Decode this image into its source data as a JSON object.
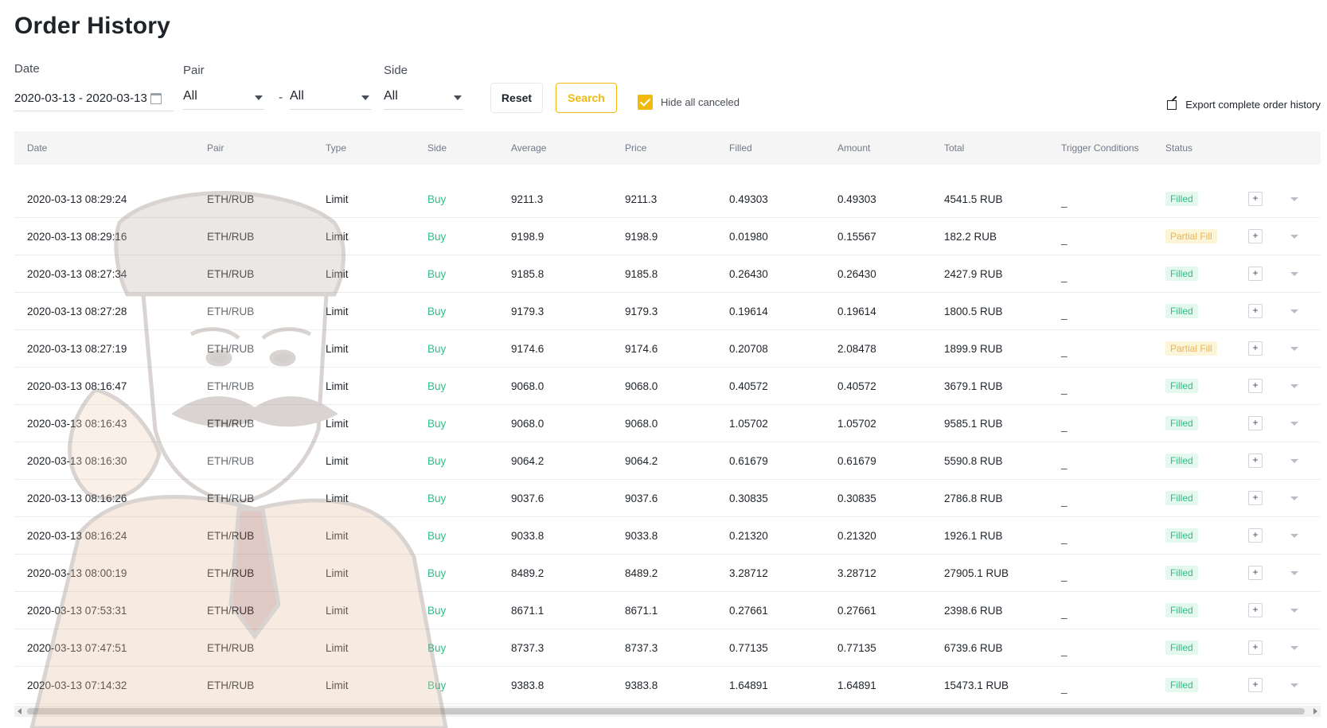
{
  "page": {
    "title": "Order History"
  },
  "filters": {
    "date_label": "Date",
    "date_range": "2020-03-13 - 2020-03-13",
    "pair_label": "Pair",
    "pair_base": "All",
    "pair_separator": "-",
    "pair_quote": "All",
    "side_label": "Side",
    "side_value": "All",
    "reset_label": "Reset",
    "search_label": "Search",
    "hide_canceled_label": "Hide all canceled",
    "hide_canceled_checked": true,
    "export_label": "Export complete order history"
  },
  "table": {
    "columns": [
      "Date",
      "Pair",
      "Type",
      "Side",
      "Average",
      "Price",
      "Filled",
      "Amount",
      "Total",
      "Trigger Conditions",
      "Status"
    ],
    "rows": [
      {
        "date": "2020-03-13 08:29:24",
        "pair": "ETH/RUB",
        "type": "Limit",
        "side": "Buy",
        "average": "9211.3",
        "price": "9211.3",
        "filled": "0.49303",
        "amount": "0.49303",
        "total": "4541.5 RUB",
        "trigger": "_",
        "status": "Filled"
      },
      {
        "date": "2020-03-13 08:29:16",
        "pair": "ETH/RUB",
        "type": "Limit",
        "side": "Buy",
        "average": "9198.9",
        "price": "9198.9",
        "filled": "0.01980",
        "amount": "0.15567",
        "total": "182.2 RUB",
        "trigger": "_",
        "status": "Partial Fill"
      },
      {
        "date": "2020-03-13 08:27:34",
        "pair": "ETH/RUB",
        "type": "Limit",
        "side": "Buy",
        "average": "9185.8",
        "price": "9185.8",
        "filled": "0.26430",
        "amount": "0.26430",
        "total": "2427.9 RUB",
        "trigger": "_",
        "status": "Filled"
      },
      {
        "date": "2020-03-13 08:27:28",
        "pair": "ETH/RUB",
        "type": "Limit",
        "side": "Buy",
        "average": "9179.3",
        "price": "9179.3",
        "filled": "0.19614",
        "amount": "0.19614",
        "total": "1800.5 RUB",
        "trigger": "_",
        "status": "Filled"
      },
      {
        "date": "2020-03-13 08:27:19",
        "pair": "ETH/RUB",
        "type": "Limit",
        "side": "Buy",
        "average": "9174.6",
        "price": "9174.6",
        "filled": "0.20708",
        "amount": "2.08478",
        "total": "1899.9 RUB",
        "trigger": "_",
        "status": "Partial Fill"
      },
      {
        "date": "2020-03-13 08:16:47",
        "pair": "ETH/RUB",
        "type": "Limit",
        "side": "Buy",
        "average": "9068.0",
        "price": "9068.0",
        "filled": "0.40572",
        "amount": "0.40572",
        "total": "3679.1 RUB",
        "trigger": "_",
        "status": "Filled"
      },
      {
        "date": "2020-03-13 08:16:43",
        "pair": "ETH/RUB",
        "type": "Limit",
        "side": "Buy",
        "average": "9068.0",
        "price": "9068.0",
        "filled": "1.05702",
        "amount": "1.05702",
        "total": "9585.1 RUB",
        "trigger": "_",
        "status": "Filled"
      },
      {
        "date": "2020-03-13 08:16:30",
        "pair": "ETH/RUB",
        "type": "Limit",
        "side": "Buy",
        "average": "9064.2",
        "price": "9064.2",
        "filled": "0.61679",
        "amount": "0.61679",
        "total": "5590.8 RUB",
        "trigger": "_",
        "status": "Filled"
      },
      {
        "date": "2020-03-13 08:16:26",
        "pair": "ETH/RUB",
        "type": "Limit",
        "side": "Buy",
        "average": "9037.6",
        "price": "9037.6",
        "filled": "0.30835",
        "amount": "0.30835",
        "total": "2786.8 RUB",
        "trigger": "_",
        "status": "Filled"
      },
      {
        "date": "2020-03-13 08:16:24",
        "pair": "ETH/RUB",
        "type": "Limit",
        "side": "Buy",
        "average": "9033.8",
        "price": "9033.8",
        "filled": "0.21320",
        "amount": "0.21320",
        "total": "1926.1 RUB",
        "trigger": "_",
        "status": "Filled"
      },
      {
        "date": "2020-03-13 08:00:19",
        "pair": "ETH/RUB",
        "type": "Limit",
        "side": "Buy",
        "average": "8489.2",
        "price": "8489.2",
        "filled": "3.28712",
        "amount": "3.28712",
        "total": "27905.1 RUB",
        "trigger": "_",
        "status": "Filled"
      },
      {
        "date": "2020-03-13 07:53:31",
        "pair": "ETH/RUB",
        "type": "Limit",
        "side": "Buy",
        "average": "8671.1",
        "price": "8671.1",
        "filled": "0.27661",
        "amount": "0.27661",
        "total": "2398.6 RUB",
        "trigger": "_",
        "status": "Filled"
      },
      {
        "date": "2020-03-13 07:47:51",
        "pair": "ETH/RUB",
        "type": "Limit",
        "side": "Buy",
        "average": "8737.3",
        "price": "8737.3",
        "filled": "0.77135",
        "amount": "0.77135",
        "total": "6739.6 RUB",
        "trigger": "_",
        "status": "Filled"
      },
      {
        "date": "2020-03-13 07:14:32",
        "pair": "ETH/RUB",
        "type": "Limit",
        "side": "Buy",
        "average": "9383.8",
        "price": "9383.8",
        "filled": "1.64891",
        "amount": "1.64891",
        "total": "15473.1 RUB",
        "trigger": "_",
        "status": "Filled"
      }
    ],
    "expand_label": "+"
  },
  "colors": {
    "accent": "#f0b90b",
    "buy": "#2ebd85",
    "filled_bg": "#e5f8ef",
    "partial_bg": "#fdf5d7",
    "partial_text": "#e6b45a"
  },
  "icons": {
    "calendar": "calendar-icon",
    "dropdown": "chevron-down-icon",
    "checkbox": "checkmark-icon",
    "export": "external-link-icon",
    "expand": "plus-icon",
    "row_toggle": "caret-down-icon",
    "watermark": "mascot-watermark"
  }
}
